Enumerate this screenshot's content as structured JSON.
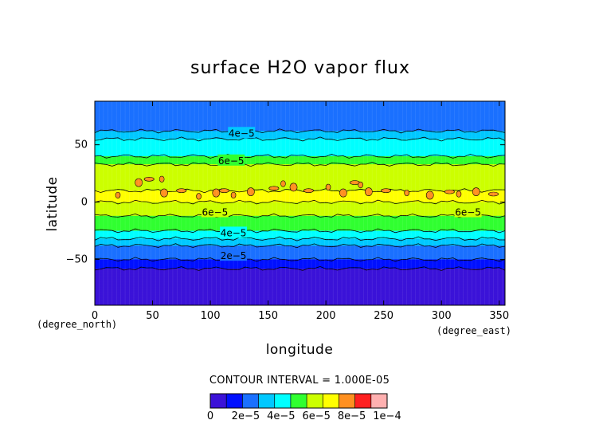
{
  "chart_data": {
    "type": "heatmap",
    "title": "surface H2O vapor flux",
    "xlabel": "longitude",
    "ylabel": "latitude",
    "x_units": "(degree_east)",
    "y_units": "(degree_north)",
    "xlim": [
      0,
      355
    ],
    "ylim": [
      -90,
      88
    ],
    "x_ticks": [
      0,
      50,
      100,
      150,
      200,
      250,
      300,
      350
    ],
    "y_ticks": [
      -50,
      0,
      50
    ],
    "x_tick_labels": [
      "0",
      "50",
      "100",
      "150",
      "200",
      "250",
      "300",
      "350"
    ],
    "y_tick_labels": [
      "−50",
      "0",
      "50"
    ],
    "grid": false,
    "contour_interval_text": "CONTOUR INTERVAL = 1.000E-05",
    "levels": [
      0,
      1e-05,
      2e-05,
      3e-05,
      4e-05,
      5e-05,
      6e-05,
      7e-05,
      8e-05,
      9e-05,
      0.0001
    ],
    "level_colors": [
      "#8000b0",
      "#3b12d8",
      "#0010ff",
      "#1a70ff",
      "#00c8ff",
      "#00ffff",
      "#30ff30",
      "#ccff00",
      "#ffff00",
      "#ff9020",
      "#ff2020",
      "#ffb0b0"
    ],
    "colorbar_labels": [
      "0",
      "2e−5",
      "4e−5",
      "6e−5",
      "8e−5",
      "1e−4"
    ],
    "colorbar_label_values": [
      0,
      2e-05,
      4e-05,
      6e-05,
      8e-05,
      0.0001
    ],
    "zonal_profile": {
      "lat": [
        -90,
        -72,
        -62,
        -58,
        -50,
        -45,
        -38,
        -32,
        -25,
        -19,
        -12,
        -9,
        0,
        10,
        22,
        33,
        40,
        48,
        55,
        62,
        70,
        76,
        88
      ],
      "flux": [
        0.0,
        0.0,
        0.0,
        1e-05,
        2e-05,
        2.5e-05,
        3e-05,
        4e-05,
        5e-05,
        5.5e-05,
        6e-05,
        6.5e-05,
        7e-05,
        7e-05,
        6.5e-05,
        6e-05,
        5e-05,
        4.5e-05,
        4e-05,
        3e-05,
        2.5e-05,
        2e-05,
        2e-05
      ]
    },
    "contour_labels": [
      {
        "text": "4e−5",
        "lon": 127,
        "lat": 60
      },
      {
        "text": "6e−5",
        "lon": 118,
        "lat": 36
      },
      {
        "text": "6e−5",
        "lon": 104,
        "lat": -9
      },
      {
        "text": "6e−5",
        "lon": 323,
        "lat": -9
      },
      {
        "text": "4e−5",
        "lon": 120,
        "lat": -27
      },
      {
        "text": "2e−5",
        "lon": 120,
        "lat": -47
      }
    ],
    "patches_8e5": [
      {
        "lon": 20,
        "lat": 6
      },
      {
        "lon": 38,
        "lat": 17
      },
      {
        "lon": 47,
        "lat": 20
      },
      {
        "lon": 58,
        "lat": 20
      },
      {
        "lon": 60,
        "lat": 8
      },
      {
        "lon": 75,
        "lat": 10
      },
      {
        "lon": 90,
        "lat": 5
      },
      {
        "lon": 105,
        "lat": 8
      },
      {
        "lon": 112,
        "lat": 10
      },
      {
        "lon": 120,
        "lat": 6
      },
      {
        "lon": 135,
        "lat": 9
      },
      {
        "lon": 155,
        "lat": 12
      },
      {
        "lon": 163,
        "lat": 16
      },
      {
        "lon": 172,
        "lat": 13
      },
      {
        "lon": 185,
        "lat": 10
      },
      {
        "lon": 202,
        "lat": 13
      },
      {
        "lon": 215,
        "lat": 8
      },
      {
        "lon": 225,
        "lat": 17
      },
      {
        "lon": 230,
        "lat": 15
      },
      {
        "lon": 237,
        "lat": 9
      },
      {
        "lon": 252,
        "lat": 10
      },
      {
        "lon": 270,
        "lat": 8
      },
      {
        "lon": 290,
        "lat": 6
      },
      {
        "lon": 307,
        "lat": 9
      },
      {
        "lon": 315,
        "lat": 7
      },
      {
        "lon": 330,
        "lat": 9
      },
      {
        "lon": 345,
        "lat": 7
      }
    ]
  }
}
